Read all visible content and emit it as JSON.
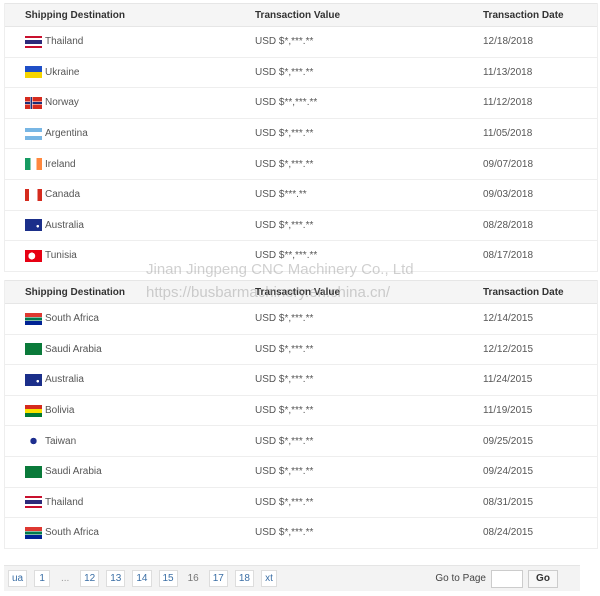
{
  "headers": {
    "dest": "Shipping Destination",
    "value": "Transaction Value",
    "date": "Transaction Date"
  },
  "table1": [
    {
      "country": "Thailand",
      "flag": "thailand",
      "value": "USD $*,***.**",
      "date": "12/18/2018"
    },
    {
      "country": "Ukraine",
      "flag": "ukraine",
      "value": "USD $*,***.**",
      "date": "11/13/2018"
    },
    {
      "country": "Norway",
      "flag": "norway",
      "value": "USD $**,***.**",
      "date": "11/12/2018"
    },
    {
      "country": "Argentina",
      "flag": "argentina",
      "value": "USD $*,***.**",
      "date": "11/05/2018"
    },
    {
      "country": "Ireland",
      "flag": "ireland",
      "value": "USD $*,***.**",
      "date": "09/07/2018"
    },
    {
      "country": "Canada",
      "flag": "canada",
      "value": "USD $***.**",
      "date": "09/03/2018"
    },
    {
      "country": "Australia",
      "flag": "australia",
      "value": "USD $*,***.**",
      "date": "08/28/2018"
    },
    {
      "country": "Tunisia",
      "flag": "tunisia",
      "value": "USD $**,***.**",
      "date": "08/17/2018"
    }
  ],
  "table2": [
    {
      "country": "South Africa",
      "flag": "southafrica",
      "value": "USD $*,***.**",
      "date": "12/14/2015"
    },
    {
      "country": "Saudi Arabia",
      "flag": "saudi",
      "value": "USD $*,***.**",
      "date": "12/12/2015"
    },
    {
      "country": "Australia",
      "flag": "australia",
      "value": "USD $*,***.**",
      "date": "11/24/2015"
    },
    {
      "country": "Bolivia",
      "flag": "bolivia",
      "value": "USD $*,***.**",
      "date": "11/19/2015"
    },
    {
      "country": "Taiwan",
      "flag": "taiwan",
      "value": "USD $*,***.**",
      "date": "09/25/2015"
    },
    {
      "country": "Saudi Arabia",
      "flag": "saudi",
      "value": "USD $*,***.**",
      "date": "09/24/2015"
    },
    {
      "country": "Thailand",
      "flag": "thailand",
      "value": "USD $*,***.**",
      "date": "08/31/2015"
    },
    {
      "country": "South Africa",
      "flag": "southafrica",
      "value": "USD $*,***.**",
      "date": "08/24/2015"
    }
  ],
  "pager": {
    "prev": "ua",
    "pages": [
      "1",
      "...",
      "12",
      "13",
      "14",
      "15",
      "16",
      "17",
      "18"
    ],
    "current": "16",
    "next": "xt",
    "goto_label": "Go to Page",
    "goto_value": "",
    "go_button": "Go"
  },
  "watermark": {
    "line1": "Jinan Jingpeng CNC Machinery Co., Ltd",
    "line2": "https://busbarmachinery.en.china.cn/"
  }
}
